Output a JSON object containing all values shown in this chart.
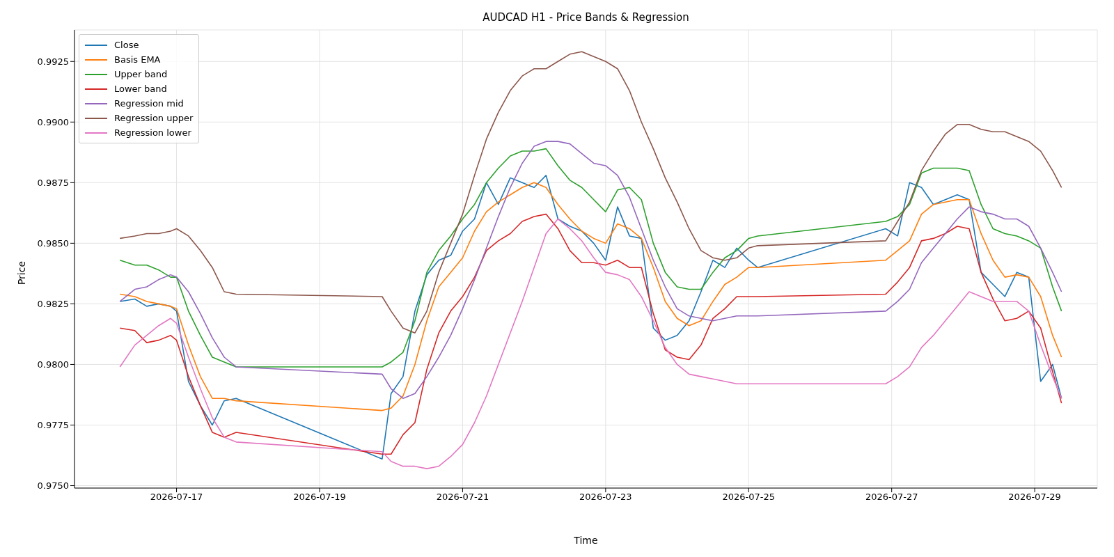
{
  "chart_data": {
    "type": "line",
    "title": "AUDCAD H1 - Price Bands & Regression",
    "xlabel": "Time",
    "ylabel": "Price",
    "x": [
      "2026-07-16T05:00",
      "2026-07-16T10:00",
      "2026-07-16T14:00",
      "2026-07-16T18:00",
      "2026-07-16T22:00",
      "2026-07-17T00:00",
      "2026-07-17T04:00",
      "2026-07-17T08:00",
      "2026-07-17T12:00",
      "2026-07-17T16:00",
      "2026-07-17T20:00",
      "2026-07-19T21:00",
      "2026-07-20T00:00",
      "2026-07-20T04:00",
      "2026-07-20T08:00",
      "2026-07-20T12:00",
      "2026-07-20T16:00",
      "2026-07-20T20:00",
      "2026-07-21T00:00",
      "2026-07-21T04:00",
      "2026-07-21T08:00",
      "2026-07-21T12:00",
      "2026-07-21T16:00",
      "2026-07-21T20:00",
      "2026-07-22T00:00",
      "2026-07-22T04:00",
      "2026-07-22T08:00",
      "2026-07-22T12:00",
      "2026-07-22T16:00",
      "2026-07-22T20:00",
      "2026-07-23T00:00",
      "2026-07-23T04:00",
      "2026-07-23T08:00",
      "2026-07-23T12:00",
      "2026-07-23T16:00",
      "2026-07-23T20:00",
      "2026-07-24T00:00",
      "2026-07-24T04:00",
      "2026-07-24T08:00",
      "2026-07-24T12:00",
      "2026-07-24T16:00",
      "2026-07-24T20:00",
      "2026-07-25T00:00",
      "2026-07-25T03:00",
      "2026-07-26T22:00",
      "2026-07-27T02:00",
      "2026-07-27T06:00",
      "2026-07-27T10:00",
      "2026-07-27T14:00",
      "2026-07-27T18:00",
      "2026-07-27T22:00",
      "2026-07-28T02:00",
      "2026-07-28T06:00",
      "2026-07-28T10:00",
      "2026-07-28T14:00",
      "2026-07-28T18:00",
      "2026-07-28T22:00",
      "2026-07-29T02:00",
      "2026-07-29T06:00",
      "2026-07-29T09:00"
    ],
    "series": [
      {
        "name": "Close",
        "color": "#1f77b4",
        "values": [
          0.9826,
          0.9827,
          0.9824,
          0.9825,
          0.9824,
          0.9822,
          0.9793,
          0.9783,
          0.9775,
          0.9785,
          0.9786,
          0.9761,
          0.9788,
          0.9795,
          0.9822,
          0.9837,
          0.9843,
          0.9845,
          0.9855,
          0.986,
          0.9875,
          0.9866,
          0.9877,
          0.9875,
          0.9873,
          0.9878,
          0.986,
          0.9857,
          0.9855,
          0.985,
          0.9843,
          0.9865,
          0.9853,
          0.9852,
          0.9815,
          0.981,
          0.9812,
          0.9818,
          0.983,
          0.9843,
          0.984,
          0.9848,
          0.9843,
          0.984,
          0.9856,
          0.9853,
          0.9875,
          0.9873,
          0.9866,
          0.9868,
          0.987,
          0.9868,
          0.9838,
          0.9833,
          0.9828,
          0.9838,
          0.9836,
          0.9793,
          0.98,
          0.9786
        ]
      },
      {
        "name": "Basis EMA",
        "color": "#ff7f0e",
        "values": [
          0.9829,
          0.9828,
          0.9826,
          0.9825,
          0.9824,
          0.9823,
          0.9808,
          0.9795,
          0.9786,
          0.9786,
          0.9785,
          0.9781,
          0.9782,
          0.9787,
          0.98,
          0.9818,
          0.9832,
          0.9838,
          0.9844,
          0.9855,
          0.9863,
          0.9867,
          0.987,
          0.9873,
          0.9875,
          0.9873,
          0.9866,
          0.986,
          0.9855,
          0.9852,
          0.985,
          0.9858,
          0.9856,
          0.9852,
          0.984,
          0.9826,
          0.9819,
          0.9816,
          0.9818,
          0.9826,
          0.9833,
          0.9836,
          0.984,
          0.984,
          0.9843,
          0.9847,
          0.9851,
          0.9862,
          0.9866,
          0.9867,
          0.9868,
          0.9868,
          0.9854,
          0.9843,
          0.9836,
          0.9837,
          0.9836,
          0.9828,
          0.9812,
          0.9803
        ]
      },
      {
        "name": "Upper band",
        "color": "#2ca02c",
        "values": [
          0.9843,
          0.9841,
          0.9841,
          0.9839,
          0.9836,
          0.9836,
          0.9822,
          0.9812,
          0.9803,
          0.9801,
          0.9799,
          0.9799,
          0.9801,
          0.9805,
          0.9818,
          0.9838,
          0.9847,
          0.9853,
          0.986,
          0.9866,
          0.9875,
          0.9881,
          0.9886,
          0.9888,
          0.9888,
          0.9889,
          0.9882,
          0.9876,
          0.9873,
          0.9868,
          0.9863,
          0.9872,
          0.9873,
          0.9868,
          0.985,
          0.9838,
          0.9832,
          0.9831,
          0.9831,
          0.9838,
          0.9844,
          0.9847,
          0.9852,
          0.9853,
          0.9859,
          0.9861,
          0.9866,
          0.9879,
          0.9881,
          0.9881,
          0.9881,
          0.988,
          0.9866,
          0.9856,
          0.9854,
          0.9853,
          0.9851,
          0.9848,
          0.9832,
          0.9822
        ]
      },
      {
        "name": "Lower band",
        "color": "#d62728",
        "values": [
          0.9815,
          0.9814,
          0.9809,
          0.981,
          0.9812,
          0.981,
          0.9795,
          0.9783,
          0.9772,
          0.977,
          0.9772,
          0.9763,
          0.9763,
          0.9771,
          0.9776,
          0.9798,
          0.9813,
          0.9822,
          0.9828,
          0.9836,
          0.9847,
          0.9851,
          0.9854,
          0.9859,
          0.9861,
          0.9862,
          0.9856,
          0.9847,
          0.9842,
          0.9842,
          0.9841,
          0.9843,
          0.984,
          0.984,
          0.9821,
          0.9806,
          0.9803,
          0.9802,
          0.9808,
          0.9819,
          0.9823,
          0.9828,
          0.9828,
          0.9828,
          0.9829,
          0.9834,
          0.984,
          0.9851,
          0.9852,
          0.9854,
          0.9857,
          0.9856,
          0.9838,
          0.9827,
          0.9818,
          0.9819,
          0.9822,
          0.9815,
          0.9797,
          0.9784
        ]
      },
      {
        "name": "Regression mid",
        "color": "#9467bd",
        "values": [
          0.9826,
          0.9831,
          0.9832,
          0.9835,
          0.9837,
          0.9836,
          0.983,
          0.9821,
          0.9811,
          0.9803,
          0.9799,
          0.9796,
          0.979,
          0.9786,
          0.9788,
          0.9795,
          0.9803,
          0.9812,
          0.9823,
          0.9835,
          0.9848,
          0.9861,
          0.9873,
          0.9883,
          0.989,
          0.9892,
          0.9892,
          0.9891,
          0.9887,
          0.9883,
          0.9882,
          0.9878,
          0.9869,
          0.9856,
          0.9843,
          0.9832,
          0.9823,
          0.982,
          0.9819,
          0.9818,
          0.9819,
          0.982,
          0.982,
          0.982,
          0.9822,
          0.9826,
          0.9831,
          0.9842,
          0.9848,
          0.9854,
          0.986,
          0.9865,
          0.9863,
          0.9862,
          0.986,
          0.986,
          0.9857,
          0.9848,
          0.9838,
          0.983
        ]
      },
      {
        "name": "Regression upper",
        "color": "#8c564b",
        "values": [
          0.9852,
          0.9853,
          0.9854,
          0.9854,
          0.9855,
          0.9856,
          0.9853,
          0.9847,
          0.984,
          0.983,
          0.9829,
          0.9828,
          0.9822,
          0.9815,
          0.9813,
          0.9822,
          0.9838,
          0.985,
          0.9862,
          0.9878,
          0.9893,
          0.9904,
          0.9913,
          0.9919,
          0.9922,
          0.9922,
          0.9925,
          0.9928,
          0.9929,
          0.9927,
          0.9925,
          0.9922,
          0.9913,
          0.99,
          0.9889,
          0.9877,
          0.9867,
          0.9856,
          0.9847,
          0.9844,
          0.9843,
          0.9844,
          0.9848,
          0.9849,
          0.9851,
          0.9859,
          0.9867,
          0.988,
          0.9888,
          0.9895,
          0.9899,
          0.9899,
          0.9897,
          0.9896,
          0.9896,
          0.9894,
          0.9892,
          0.9888,
          0.988,
          0.9873
        ]
      },
      {
        "name": "Regression lower",
        "color": "#e377c2",
        "values": [
          0.9799,
          0.9808,
          0.9812,
          0.9816,
          0.9819,
          0.9817,
          0.9803,
          0.979,
          0.9778,
          0.977,
          0.9768,
          0.9764,
          0.976,
          0.9758,
          0.9758,
          0.9757,
          0.9758,
          0.9762,
          0.9767,
          0.9776,
          0.9787,
          0.98,
          0.9813,
          0.9826,
          0.984,
          0.9854,
          0.986,
          0.9856,
          0.9851,
          0.9844,
          0.9838,
          0.9837,
          0.9835,
          0.9828,
          0.9818,
          0.9807,
          0.98,
          0.9796,
          0.9795,
          0.9794,
          0.9793,
          0.9792,
          0.9792,
          0.9792,
          0.9792,
          0.9795,
          0.9799,
          0.9807,
          0.9812,
          0.9818,
          0.9824,
          0.983,
          0.9828,
          0.9826,
          0.9826,
          0.9826,
          0.9822,
          0.9808,
          0.9795,
          0.9786
        ]
      }
    ],
    "xlim": [
      "2026-07-15T13:45",
      "2026-07-29T21:00"
    ],
    "xticks": [
      "2026-07-17",
      "2026-07-19",
      "2026-07-21",
      "2026-07-23",
      "2026-07-25",
      "2026-07-27",
      "2026-07-29"
    ],
    "ylim": [
      0.9749,
      0.9938
    ],
    "yticks": [
      {
        "value": 0.975,
        "label": "0.9750"
      },
      {
        "value": 0.9775,
        "label": "0.9775"
      },
      {
        "value": 0.98,
        "label": "0.9800"
      },
      {
        "value": 0.9825,
        "label": "0.9825"
      },
      {
        "value": 0.985,
        "label": "0.9850"
      },
      {
        "value": 0.9875,
        "label": "0.9875"
      },
      {
        "value": 0.99,
        "label": "0.9900"
      },
      {
        "value": 0.9925,
        "label": "0.9925"
      }
    ],
    "grid": true,
    "legend": "top left",
    "marker": "none",
    "line_style": "solid"
  }
}
